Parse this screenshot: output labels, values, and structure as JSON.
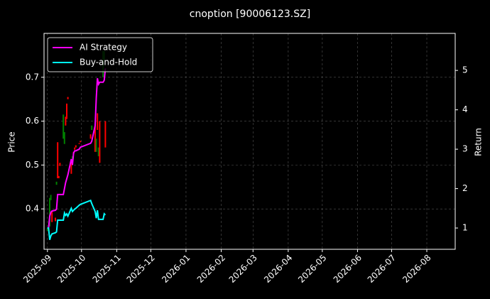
{
  "chart_data": {
    "type": "candlestick",
    "title": "cnoption [90006123.SZ]",
    "ylabel": "Price",
    "y2label": "Return",
    "x": [
      20332,
      20333,
      20334,
      20335,
      20336,
      20339,
      20340,
      20341,
      20342,
      20343,
      20346,
      20347,
      20348,
      20349,
      20350,
      20353,
      20354,
      20355,
      20356,
      20357,
      20360,
      20361,
      20370,
      20371,
      20374,
      20375,
      20376,
      20377,
      20378,
      20381,
      20382,
      20383
    ],
    "open": [
      0.35,
      0.356,
      0.36,
      0.42,
      0.395,
      0.38,
      0.455,
      0.552,
      0.475,
      0.505,
      0.56,
      0.548,
      0.61,
      0.64,
      0.655,
      0.505,
      0.5,
      0.53,
      0.54,
      0.545,
      0.55,
      0.555,
      0.57,
      0.58,
      0.59,
      0.53,
      0.618,
      0.52,
      0.6,
      0.7,
      0.74,
      0.6
    ],
    "close": [
      0.356,
      0.352,
      0.425,
      0.432,
      0.37,
      0.372,
      0.462,
      0.47,
      0.47,
      0.498,
      0.615,
      0.575,
      0.59,
      0.605,
      0.65,
      0.48,
      0.52,
      0.525,
      0.535,
      0.54,
      0.548,
      0.552,
      0.56,
      0.59,
      0.53,
      0.56,
      0.58,
      0.54,
      0.505,
      0.76,
      0.76,
      0.54
    ],
    "up_color": "#008000",
    "down_color": "#ff0000",
    "series": [
      {
        "name": "AI Strategy",
        "color": "#ff00ff",
        "axis": "y2",
        "values": [
          1.0,
          1.0,
          1.3,
          1.4,
          1.43,
          1.45,
          1.48,
          1.85,
          1.85,
          1.85,
          1.85,
          2.0,
          2.15,
          2.25,
          2.35,
          2.75,
          2.6,
          2.9,
          2.96,
          2.96,
          3.0,
          3.05,
          3.15,
          3.2,
          3.6,
          4.3,
          4.8,
          4.65,
          4.7,
          4.7,
          4.75,
          5.05
        ]
      },
      {
        "name": "Buy-and-Hold",
        "color": "#00ffff",
        "axis": "y2",
        "values": [
          1.0,
          1.0,
          0.7,
          0.8,
          0.85,
          0.88,
          0.9,
          1.2,
          1.2,
          1.2,
          1.2,
          1.38,
          1.32,
          1.36,
          1.3,
          1.5,
          1.42,
          1.45,
          1.48,
          1.5,
          1.58,
          1.6,
          1.7,
          1.62,
          1.42,
          1.25,
          1.45,
          1.22,
          1.22,
          1.22,
          1.36,
          1.33
        ]
      }
    ],
    "xlim": [
      20329,
      20691
    ],
    "xticks": [
      {
        "value": 20332,
        "label": "2025-09"
      },
      {
        "value": 20362,
        "label": "2025-10"
      },
      {
        "value": 20393,
        "label": "2025-11"
      },
      {
        "value": 20423,
        "label": "2025-12"
      },
      {
        "value": 20454,
        "label": "2026-01"
      },
      {
        "value": 20485,
        "label": "2026-02"
      },
      {
        "value": 20513,
        "label": "2026-03"
      },
      {
        "value": 20544,
        "label": "2026-04"
      },
      {
        "value": 20574,
        "label": "2026-05"
      },
      {
        "value": 20605,
        "label": "2026-06"
      },
      {
        "value": 20635,
        "label": "2026-07"
      },
      {
        "value": 20666,
        "label": "2026-08"
      }
    ],
    "ylim": [
      0.308,
      0.8
    ],
    "yticks": [
      0.4,
      0.5,
      0.6,
      0.7
    ],
    "y2lim": [
      0.46,
      5.94
    ],
    "y2ticks": [
      1,
      2,
      3,
      4,
      5
    ],
    "grid": true,
    "legend": "upper-left"
  }
}
